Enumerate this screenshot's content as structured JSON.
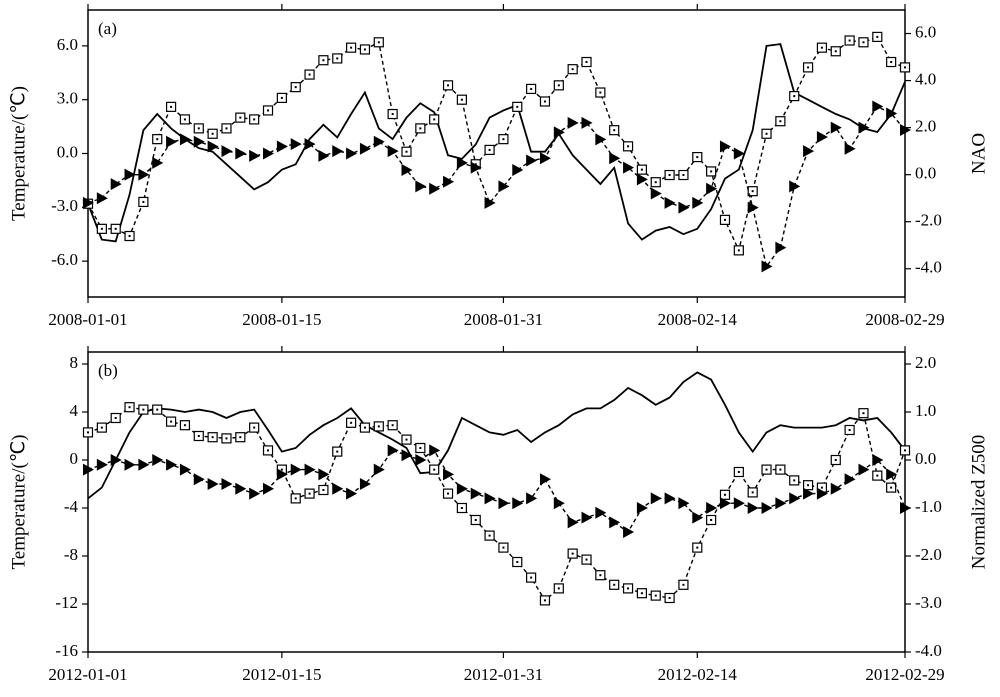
{
  "chart_data": [
    {
      "type": "line",
      "label": "(a)",
      "ylabel": "Temperature/(℃)",
      "y2label": "NAO",
      "xlim": [
        "2008-01-01",
        "2008-02-29"
      ],
      "xticks": [
        "2008-01-01",
        "2008-01-15",
        "2008-01-31",
        "2008-02-14",
        "2008-02-29"
      ],
      "ylim": [
        -8,
        8
      ],
      "yticks": [
        {
          "value": 6,
          "label": "6.0"
        },
        {
          "value": 3,
          "label": "3.0"
        },
        {
          "value": 0,
          "label": "0.0"
        },
        {
          "value": -3,
          "label": "-3.0"
        },
        {
          "value": -6,
          "label": "-6.0"
        }
      ],
      "y2lim": [
        -5.2,
        7
      ],
      "y2ticks": [
        {
          "value": 6,
          "label": "6.0"
        },
        {
          "value": 4,
          "label": "4.0"
        },
        {
          "value": 2,
          "label": "2.0"
        },
        {
          "value": 0,
          "label": "0.0"
        },
        {
          "value": -2,
          "label": "-2.0"
        },
        {
          "value": -4,
          "label": "-4.0"
        }
      ],
      "x": [
        "2008-01-01",
        "2008-01-02",
        "2008-01-03",
        "2008-01-04",
        "2008-01-05",
        "2008-01-06",
        "2008-01-07",
        "2008-01-08",
        "2008-01-09",
        "2008-01-10",
        "2008-01-11",
        "2008-01-12",
        "2008-01-13",
        "2008-01-14",
        "2008-01-15",
        "2008-01-16",
        "2008-01-17",
        "2008-01-18",
        "2008-01-19",
        "2008-01-20",
        "2008-01-21",
        "2008-01-22",
        "2008-01-23",
        "2008-01-24",
        "2008-01-25",
        "2008-01-26",
        "2008-01-27",
        "2008-01-28",
        "2008-01-29",
        "2008-01-30",
        "2008-01-31",
        "2008-02-01",
        "2008-02-02",
        "2008-02-03",
        "2008-02-04",
        "2008-02-05",
        "2008-02-06",
        "2008-02-07",
        "2008-02-08",
        "2008-02-09",
        "2008-02-10",
        "2008-02-11",
        "2008-02-12",
        "2008-02-13",
        "2008-02-14",
        "2008-02-15",
        "2008-02-16",
        "2008-02-17",
        "2008-02-18",
        "2008-02-19",
        "2008-02-20",
        "2008-02-21",
        "2008-02-22",
        "2008-02-23",
        "2008-02-24",
        "2008-02-25",
        "2008-02-26",
        "2008-02-27",
        "2008-02-28",
        "2008-02-29"
      ],
      "series": [
        {
          "color": "#000000",
          "line": "solid",
          "marker": "none",
          "axis": "y",
          "values": [
            -2.8,
            -4.8,
            -4.9,
            -2.3,
            1.3,
            2.2,
            1.4,
            0.8,
            0.3,
            0.1,
            -0.6,
            -1.3,
            -2.0,
            -1.6,
            -0.9,
            -0.6,
            0.8,
            1.6,
            0.9,
            2.2,
            3.4,
            1.4,
            0.8,
            2.0,
            2.8,
            2.3,
            -0.1,
            -0.3,
            0.5,
            2.0,
            2.4,
            2.7,
            0.1,
            0.1,
            1.1,
            -0.1,
            -0.9,
            -1.7,
            -0.8,
            -3.9,
            -4.8,
            -4.3,
            -4.1,
            -4.5,
            -4.2,
            -3.1,
            -1.4,
            -0.9,
            1.3,
            6.0,
            6.1,
            3.4,
            3.0,
            2.6,
            2.2,
            1.9,
            1.4,
            1.2,
            2.2,
            4.0
          ]
        },
        {
          "color": "#000000",
          "line": "dashed",
          "marker": "square",
          "axis": "y",
          "values": [
            -2.8,
            -4.2,
            -4.2,
            -4.6,
            -2.7,
            0.8,
            2.6,
            1.9,
            1.4,
            1.1,
            1.4,
            2.0,
            1.9,
            2.4,
            3.1,
            3.7,
            4.4,
            5.2,
            5.3,
            5.9,
            5.8,
            6.2,
            2.2,
            0.1,
            1.4,
            1.9,
            3.8,
            3.0,
            -0.6,
            0.2,
            0.8,
            2.6,
            3.6,
            2.9,
            3.8,
            4.7,
            5.1,
            3.4,
            1.3,
            0.4,
            -0.9,
            -1.6,
            -1.2,
            -1.2,
            -0.2,
            -1.0,
            -3.7,
            -5.4,
            -2.1,
            1.1,
            1.8,
            3.2,
            4.8,
            5.9,
            5.7,
            6.3,
            6.2,
            6.5,
            5.1,
            4.8
          ]
        },
        {
          "color": "#000000",
          "line": "dashed",
          "marker": "triangle",
          "axis": "y2",
          "values": [
            -1.2,
            -1.0,
            -0.4,
            0.0,
            0.0,
            0.5,
            1.4,
            1.5,
            1.4,
            1.2,
            1.0,
            0.9,
            0.8,
            0.9,
            1.2,
            1.3,
            1.3,
            0.8,
            1.0,
            0.9,
            1.1,
            1.4,
            1.0,
            0.2,
            -0.5,
            -0.6,
            -0.3,
            0.5,
            0.3,
            -1.2,
            -0.5,
            0.2,
            0.6,
            0.7,
            1.8,
            2.2,
            2.2,
            1.5,
            0.7,
            0.3,
            -0.2,
            -0.8,
            -1.2,
            -1.4,
            -1.2,
            -0.6,
            1.2,
            0.9,
            -1.4,
            -3.9,
            -3.1,
            -0.5,
            1.0,
            1.6,
            2.0,
            1.1,
            2.0,
            2.9,
            2.6,
            1.9
          ]
        }
      ]
    },
    {
      "type": "line",
      "label": "(b)",
      "ylabel": "Temperature/(℃)",
      "y2label": "Normalized Z500",
      "xlim": [
        "2012-01-01",
        "2012-02-29"
      ],
      "xticks": [
        "2012-01-01",
        "2012-01-15",
        "2012-01-31",
        "2012-02-14",
        "2012-02-29"
      ],
      "ylim": [
        -16,
        9
      ],
      "yticks": [
        8,
        4,
        0,
        -4,
        -8,
        -12,
        -16
      ],
      "y2lim": [
        -4,
        2.25
      ],
      "y2ticks": [
        {
          "value": 2,
          "label": "2.0"
        },
        {
          "value": 1,
          "label": "1.0"
        },
        {
          "value": 0,
          "label": "0.0"
        },
        {
          "value": -1,
          "label": "-1.0"
        },
        {
          "value": -2,
          "label": "-2.0"
        },
        {
          "value": -3,
          "label": "-3.0"
        },
        {
          "value": -4,
          "label": "-4.0"
        }
      ],
      "x": [
        "2012-01-01",
        "2012-01-02",
        "2012-01-03",
        "2012-01-04",
        "2012-01-05",
        "2012-01-06",
        "2012-01-07",
        "2012-01-08",
        "2012-01-09",
        "2012-01-10",
        "2012-01-11",
        "2012-01-12",
        "2012-01-13",
        "2012-01-14",
        "2012-01-15",
        "2012-01-16",
        "2012-01-17",
        "2012-01-18",
        "2012-01-19",
        "2012-01-20",
        "2012-01-21",
        "2012-01-22",
        "2012-01-23",
        "2012-01-24",
        "2012-01-25",
        "2012-01-26",
        "2012-01-27",
        "2012-01-28",
        "2012-01-29",
        "2012-01-30",
        "2012-01-31",
        "2012-02-01",
        "2012-02-02",
        "2012-02-03",
        "2012-02-04",
        "2012-02-05",
        "2012-02-06",
        "2012-02-07",
        "2012-02-08",
        "2012-02-09",
        "2012-02-10",
        "2012-02-11",
        "2012-02-12",
        "2012-02-13",
        "2012-02-14",
        "2012-02-15",
        "2012-02-16",
        "2012-02-17",
        "2012-02-18",
        "2012-02-19",
        "2012-02-20",
        "2012-02-21",
        "2012-02-22",
        "2012-02-23",
        "2012-02-24",
        "2012-02-25",
        "2012-02-26",
        "2012-02-27",
        "2012-02-28",
        "2012-02-29"
      ],
      "series": [
        {
          "color": "#000000",
          "line": "solid",
          "marker": "none",
          "axis": "y",
          "values": [
            -3.2,
            -2.3,
            0.0,
            2.3,
            4.0,
            4.3,
            4.2,
            4.0,
            4.2,
            4.0,
            3.5,
            4.0,
            4.2,
            2.5,
            0.7,
            1.0,
            2.1,
            2.9,
            3.5,
            4.3,
            2.9,
            2.3,
            1.7,
            1.0,
            -1.1,
            -1.0,
            0.8,
            3.5,
            2.9,
            2.3,
            2.1,
            2.5,
            1.5,
            2.3,
            2.9,
            3.8,
            4.3,
            4.3,
            5.0,
            6.0,
            5.4,
            4.6,
            5.2,
            6.5,
            7.3,
            6.7,
            4.6,
            2.3,
            0.7,
            2.3,
            2.9,
            2.7,
            2.7,
            2.7,
            2.9,
            3.5,
            3.3,
            3.5,
            2.3,
            0.8
          ]
        },
        {
          "color": "#000000",
          "line": "dashed",
          "marker": "square",
          "axis": "y",
          "values": [
            2.3,
            2.7,
            3.5,
            4.4,
            4.2,
            4.2,
            3.2,
            2.9,
            2.0,
            1.9,
            1.8,
            1.9,
            2.7,
            0.8,
            -0.8,
            -3.2,
            -2.8,
            -2.5,
            0.7,
            3.1,
            2.7,
            2.8,
            2.9,
            1.7,
            1.0,
            -0.8,
            -2.8,
            -4.0,
            -5.0,
            -6.3,
            -7.3,
            -8.5,
            -9.8,
            -11.7,
            -10.7,
            -7.8,
            -8.3,
            -9.6,
            -10.4,
            -10.7,
            -11.1,
            -11.3,
            -11.5,
            -10.4,
            -7.3,
            -5.0,
            -2.9,
            -1.0,
            -2.7,
            -0.8,
            -0.8,
            -1.7,
            -2.1,
            -2.3,
            0.0,
            2.5,
            3.9,
            -1.3,
            -2.3,
            0.8
          ]
        },
        {
          "color": "#000000",
          "line": "dashed",
          "marker": "triangle",
          "axis": "y2",
          "values": [
            -0.2,
            -0.1,
            0.0,
            -0.1,
            -0.1,
            0.0,
            -0.1,
            -0.2,
            -0.4,
            -0.5,
            -0.5,
            -0.6,
            -0.7,
            -0.6,
            -0.3,
            -0.2,
            -0.2,
            -0.3,
            -0.6,
            -0.7,
            -0.5,
            -0.2,
            0.2,
            0.1,
            0.0,
            0.2,
            -0.3,
            -0.6,
            -0.7,
            -0.8,
            -0.9,
            -0.9,
            -0.8,
            -0.4,
            -0.9,
            -1.3,
            -1.2,
            -1.1,
            -1.3,
            -1.5,
            -1.0,
            -0.8,
            -0.8,
            -0.9,
            -1.2,
            -1.0,
            -0.9,
            -0.9,
            -1.0,
            -1.0,
            -0.9,
            -0.8,
            -0.7,
            -0.7,
            -0.6,
            -0.4,
            -0.2,
            0.0,
            -0.3,
            -1.0
          ]
        }
      ]
    }
  ]
}
